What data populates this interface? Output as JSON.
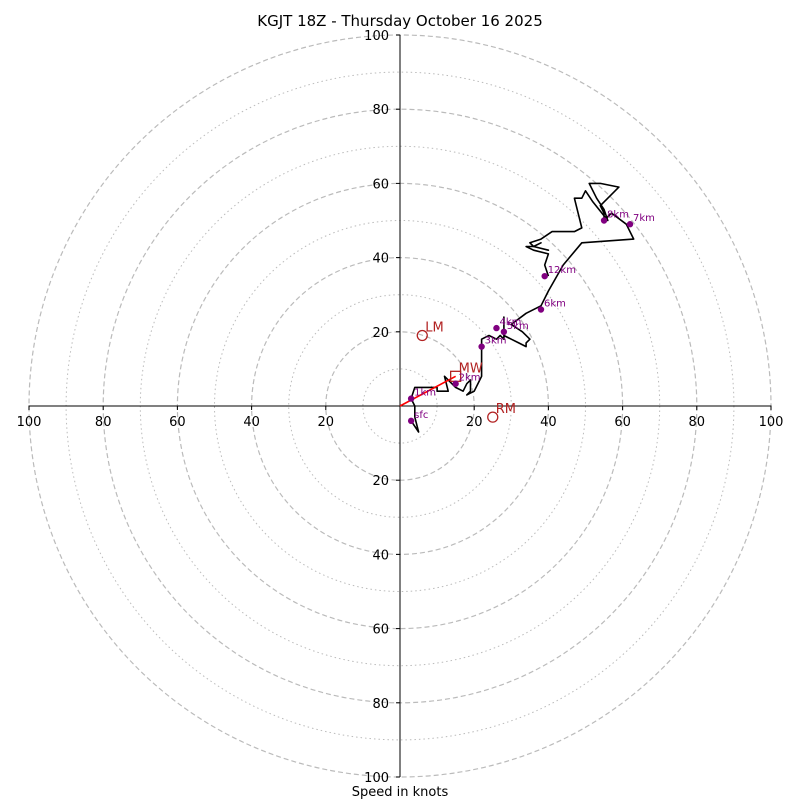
{
  "chart_data": {
    "type": "line",
    "subtype": "hodograph",
    "title": "KGJT 18Z - Thursday October 16 2025",
    "xlabel": "Speed in knots",
    "xlim": [
      -100,
      100
    ],
    "ylim": [
      -100,
      100
    ],
    "units": "knots",
    "ring_major": [
      20,
      40,
      60,
      80,
      100
    ],
    "ring_minor": [
      10,
      30,
      50,
      70,
      90
    ],
    "x_tick_labels": [
      "100",
      "80",
      "60",
      "40",
      "20",
      "20",
      "40",
      "60",
      "80",
      "100"
    ],
    "y_tick_labels": [
      "100",
      "80",
      "60",
      "40",
      "20",
      "20",
      "40",
      "60",
      "80",
      "100"
    ],
    "colors": {
      "trace": "#000000",
      "height_points": "#800080",
      "motion": "#b22222",
      "shear_vector": "#ff0000",
      "rings": "#bbbbbb",
      "axes": "#000000"
    },
    "hodograph_trace": [
      [
        3,
        -4
      ],
      [
        5,
        -7
      ],
      [
        4,
        -3
      ],
      [
        4,
        0
      ],
      [
        3,
        2
      ],
      [
        4,
        5
      ],
      [
        10,
        5
      ],
      [
        10,
        4
      ],
      [
        13,
        4
      ],
      [
        12,
        8
      ],
      [
        14,
        6
      ],
      [
        15,
        5
      ],
      [
        17,
        4
      ],
      [
        18,
        6
      ],
      [
        19,
        7
      ],
      [
        19,
        5
      ],
      [
        19,
        4
      ],
      [
        18,
        3
      ],
      [
        20,
        4
      ],
      [
        22,
        8
      ],
      [
        22,
        11
      ],
      [
        22,
        14
      ],
      [
        22,
        16
      ],
      [
        22,
        18
      ],
      [
        24,
        19
      ],
      [
        26,
        18
      ],
      [
        27,
        19
      ],
      [
        28,
        18
      ],
      [
        28,
        20
      ],
      [
        28,
        22
      ],
      [
        28,
        24
      ],
      [
        28,
        21
      ],
      [
        28,
        19
      ],
      [
        30,
        18
      ],
      [
        32,
        17
      ],
      [
        34,
        16
      ],
      [
        34,
        17
      ],
      [
        35,
        18
      ],
      [
        33,
        20
      ],
      [
        30,
        22
      ],
      [
        34,
        25
      ],
      [
        38,
        27
      ],
      [
        40,
        31
      ],
      [
        44,
        38
      ],
      [
        49,
        44
      ],
      [
        63,
        45
      ],
      [
        61,
        49
      ],
      [
        57,
        52
      ],
      [
        56,
        51
      ],
      [
        55,
        50
      ],
      [
        55,
        52
      ],
      [
        54,
        54
      ],
      [
        56,
        56
      ],
      [
        59,
        59
      ],
      [
        54,
        60
      ],
      [
        51,
        60
      ],
      [
        53,
        56
      ],
      [
        55,
        53
      ],
      [
        56,
        50
      ],
      [
        52,
        55
      ],
      [
        50,
        58
      ],
      [
        49,
        56
      ],
      [
        47,
        56
      ],
      [
        49,
        48
      ],
      [
        47,
        47
      ],
      [
        41,
        47
      ],
      [
        38,
        45
      ],
      [
        35,
        44
      ],
      [
        36,
        43
      ],
      [
        38,
        44
      ],
      [
        36,
        43
      ],
      [
        40,
        42
      ],
      [
        36,
        43
      ],
      [
        34,
        43
      ],
      [
        36,
        42
      ],
      [
        40,
        41
      ],
      [
        39,
        38
      ],
      [
        40,
        35
      ]
    ],
    "height_points": [
      {
        "label": "sfc",
        "u": 3,
        "v": -4
      },
      {
        "label": "1km",
        "u": 3,
        "v": 2
      },
      {
        "label": "2km",
        "u": 15,
        "v": 6
      },
      {
        "label": "3km",
        "u": 22,
        "v": 16
      },
      {
        "label": "4km",
        "u": 26,
        "v": 21
      },
      {
        "label": "5km",
        "u": 28,
        "v": 20
      },
      {
        "label": "6km",
        "u": 38,
        "v": 26
      },
      {
        "label": "7km",
        "u": 62,
        "v": 49
      },
      {
        "label": "8km",
        "u": 55,
        "v": 50
      },
      {
        "label": "12km",
        "u": 39,
        "v": 35
      }
    ],
    "storm_motion": [
      {
        "label": "LM",
        "u": 6,
        "v": 19,
        "marker": "circle"
      },
      {
        "label": "RM",
        "u": 25,
        "v": -3,
        "marker": "circle"
      },
      {
        "label": "MW",
        "u": 15,
        "v": 8,
        "marker": "square"
      }
    ],
    "shear_vector": {
      "from": [
        0,
        0
      ],
      "to": [
        15,
        8
      ]
    }
  }
}
